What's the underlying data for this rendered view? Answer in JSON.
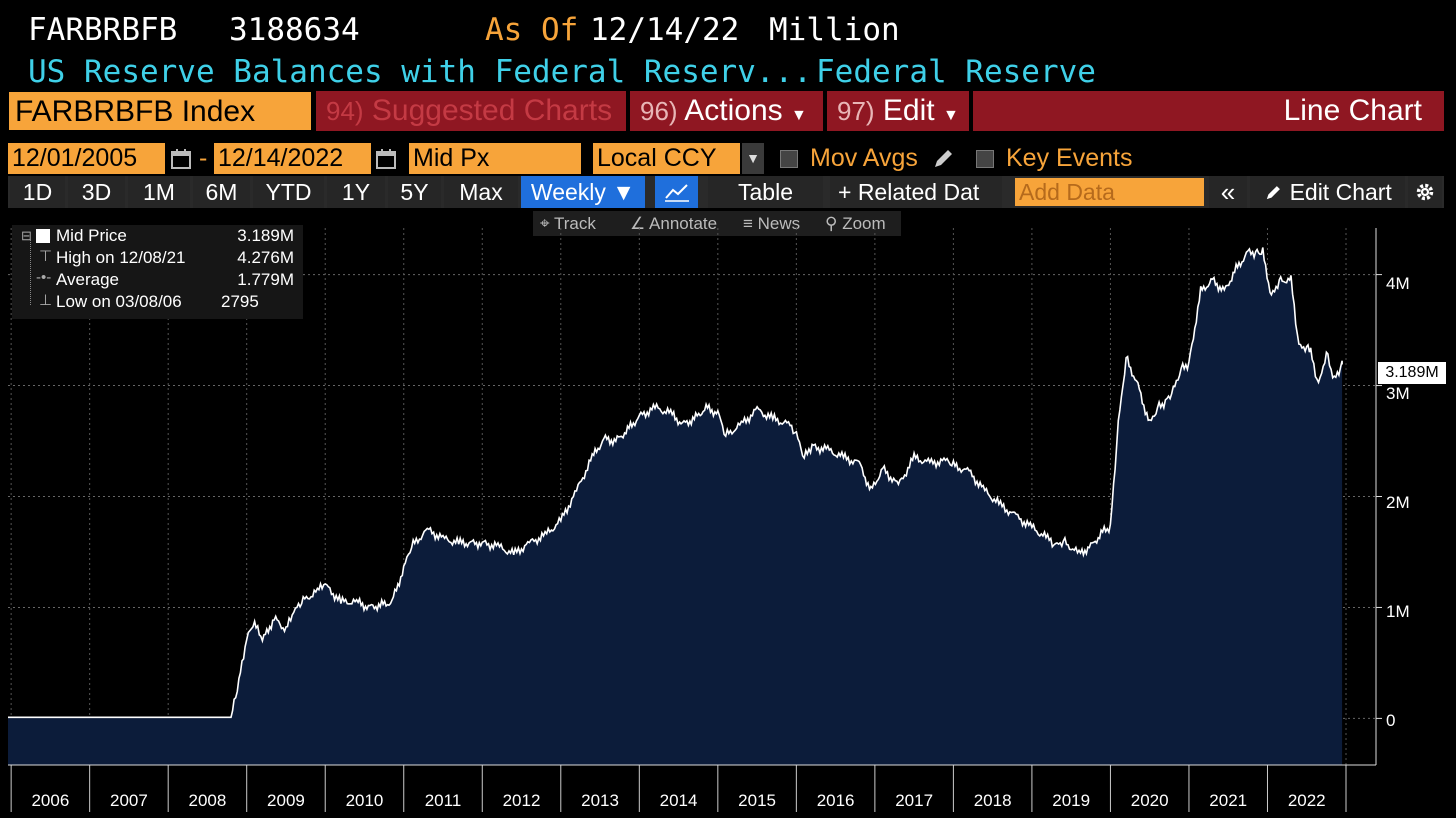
{
  "header": {
    "ticker": "FARBRBFB",
    "last_value": "3188634",
    "as_of_label": "As Of",
    "as_of_date": "12/14/22",
    "units": "Million",
    "description": "US Reserve Balances with Federal Reserv...",
    "source": "Federal Reserve"
  },
  "toolbar": {
    "index_label": "FARBRBFB Index",
    "suggested_num": "94)",
    "suggested_label": "Suggested Charts",
    "actions_num": "96)",
    "actions_label": "Actions",
    "edit_num": "97)",
    "edit_label": "Edit",
    "chart_type": "Line Chart"
  },
  "controls": {
    "start_date": "12/01/2005",
    "date_sep": "-",
    "end_date": "12/14/2022",
    "field": "Mid Px",
    "currency": "Local CCY",
    "mov_avgs_label": "Mov Avgs",
    "key_events_label": "Key Events"
  },
  "periods": [
    "1D",
    "3D",
    "1M",
    "6M",
    "YTD",
    "1Y",
    "5Y",
    "Max"
  ],
  "frequency": "Weekly ▼",
  "view_buttons": {
    "table": "Table",
    "related": "+ Related Dat",
    "add_data_placeholder": "Add Data",
    "collapse": "«",
    "edit_chart": "Edit Chart"
  },
  "track_bar": {
    "track": "Track",
    "annotate": "Annotate",
    "news": "News",
    "zoom": "Zoom"
  },
  "legend": {
    "series_name": "Mid Price",
    "series_value": "3.189M",
    "high_label": "High on 12/08/21",
    "high_value": "4.276M",
    "avg_label": "Average",
    "avg_value": "1.779M",
    "low_label": "Low on 03/08/06",
    "low_value": "2795"
  },
  "chart_data": {
    "type": "area",
    "ylabel_units": "Million",
    "y_ticks": [
      "0",
      "1M",
      "2M",
      "3M",
      "4M"
    ],
    "x_ticks": [
      "2006",
      "2007",
      "2008",
      "2009",
      "2010",
      "2011",
      "2012",
      "2013",
      "2014",
      "2015",
      "2016",
      "2017",
      "2018",
      "2019",
      "2020",
      "2021",
      "2022"
    ],
    "last_label": "3.189M",
    "ylim": [
      -0.42,
      4.42
    ],
    "xlim": [
      2005.96,
      2023.0
    ],
    "series": [
      {
        "name": "Mid Price",
        "x": [
          2005.92,
          2006.5,
          2007.0,
          2007.5,
          2008.0,
          2008.6,
          2008.73,
          2008.8,
          2008.88,
          2009.0,
          2009.1,
          2009.2,
          2009.35,
          2009.5,
          2009.6,
          2009.7,
          2009.9,
          2010.0,
          2010.2,
          2010.4,
          2010.55,
          2010.7,
          2010.85,
          2011.0,
          2011.1,
          2011.3,
          2011.5,
          2011.7,
          2012.0,
          2012.2,
          2012.4,
          2012.6,
          2012.8,
          2013.0,
          2013.2,
          2013.4,
          2013.55,
          2013.7,
          2013.85,
          2014.0,
          2014.2,
          2014.4,
          2014.55,
          2014.7,
          2014.85,
          2015.0,
          2015.1,
          2015.3,
          2015.5,
          2015.7,
          2015.9,
          2016.0,
          2016.1,
          2016.2,
          2016.4,
          2016.6,
          2016.8,
          2016.95,
          2017.1,
          2017.3,
          2017.5,
          2017.7,
          2017.9,
          2018.0,
          2018.2,
          2018.4,
          2018.6,
          2018.8,
          2019.0,
          2019.2,
          2019.3,
          2019.4,
          2019.6,
          2019.75,
          2019.9,
          2020.0,
          2020.1,
          2020.2,
          2020.35,
          2020.5,
          2020.6,
          2020.7,
          2020.8,
          2020.9,
          2021.0,
          2021.15,
          2021.3,
          2021.45,
          2021.6,
          2021.75,
          2021.85,
          2021.94,
          2022.05,
          2022.15,
          2022.3,
          2022.4,
          2022.5,
          2022.55,
          2022.65,
          2022.75,
          2022.85,
          2022.95,
          2023.0
        ],
        "values": [
          0.01,
          0.01,
          0.01,
          0.01,
          0.01,
          0.01,
          0.01,
          0.01,
          0.25,
          0.72,
          0.85,
          0.7,
          0.9,
          0.8,
          0.95,
          1.05,
          1.15,
          1.2,
          1.05,
          1.05,
          1.0,
          1.02,
          1.05,
          1.35,
          1.55,
          1.7,
          1.62,
          1.58,
          1.58,
          1.55,
          1.48,
          1.58,
          1.65,
          1.78,
          2.05,
          2.35,
          2.52,
          2.5,
          2.6,
          2.72,
          2.8,
          2.75,
          2.65,
          2.7,
          2.8,
          2.75,
          2.55,
          2.65,
          2.78,
          2.7,
          2.65,
          2.55,
          2.35,
          2.45,
          2.42,
          2.35,
          2.3,
          2.05,
          2.25,
          2.1,
          2.35,
          2.3,
          2.32,
          2.28,
          2.22,
          2.05,
          1.92,
          1.82,
          1.72,
          1.62,
          1.55,
          1.6,
          1.48,
          1.55,
          1.68,
          1.72,
          2.65,
          3.25,
          3.0,
          2.65,
          2.8,
          2.85,
          2.95,
          3.15,
          3.2,
          3.85,
          3.95,
          3.85,
          4.05,
          4.2,
          4.2,
          4.2,
          3.8,
          3.95,
          3.95,
          3.35,
          3.35,
          3.3,
          3.0,
          3.3,
          3.05,
          3.19,
          3.19
        ]
      }
    ]
  }
}
